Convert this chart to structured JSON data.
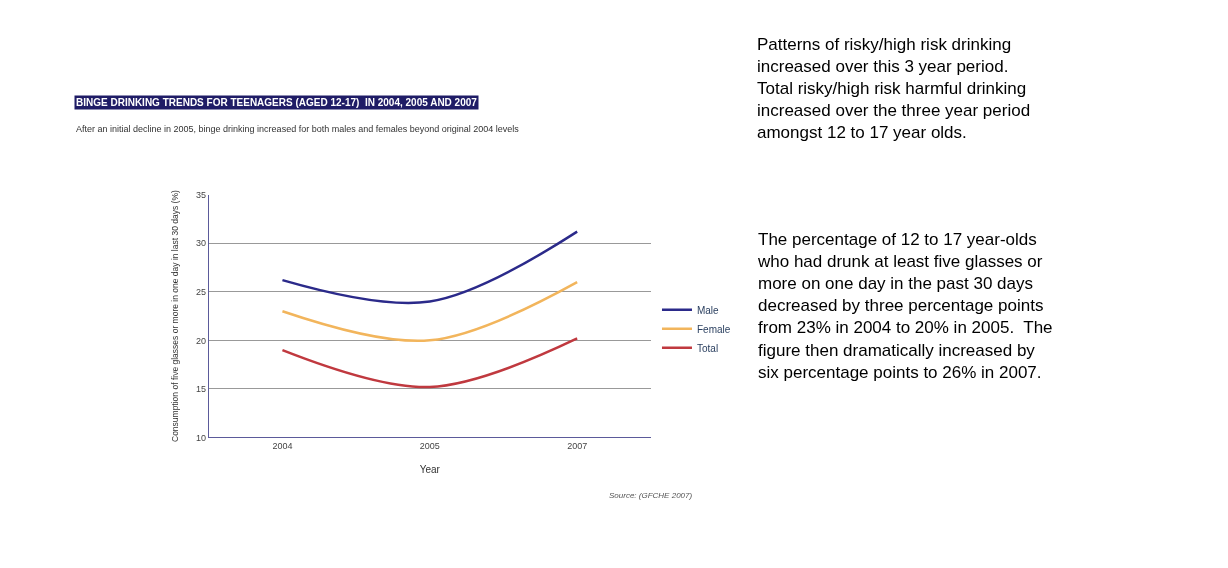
{
  "chart_data": {
    "type": "line",
    "title": "BINGE DRINKING TRENDS FOR TEENAGERS (AGED 12-17)  IN 2004, 2005 AND 2007",
    "subtitle": "After an initial decline in 2005, binge drinking increased for both males and females beyond original 2004 levels",
    "xlabel": "Year",
    "ylabel": "Consumption of five glasses or more in one day in last 30 days (%)",
    "categories": [
      "2004",
      "2005",
      "2007"
    ],
    "series": [
      {
        "name": "Male",
        "color": "#2b2a8a",
        "values": [
          26.2,
          24,
          31.2
        ]
      },
      {
        "name": "Female",
        "color": "#f2b55c",
        "values": [
          23,
          20,
          26
        ]
      },
      {
        "name": "Total",
        "color": "#c0393f",
        "values": [
          19,
          15.2,
          20.2
        ]
      }
    ],
    "ylim": [
      10,
      35
    ],
    "yticks": [
      10,
      15,
      20,
      25,
      30,
      35
    ],
    "grid": "y",
    "legend": "right",
    "marker": "none",
    "line_style": "solid",
    "annotations": [
      "Source: (GFCHE 2007)",
      "Patterns of risky/high risk drinking increased over this 3 year period.  Total risky/high risk harmful drinking increased over the three year period amongst 12 to 17 year olds.",
      "The percentage of 12 to 17 year-olds who had drunk at least five glasses or more on one day in the past 30 days decreased by three percentage points from 23% in 2004 to 20% in 2005.  The figure then dramatically increased by six percentage points to 26% in 2007."
    ]
  }
}
